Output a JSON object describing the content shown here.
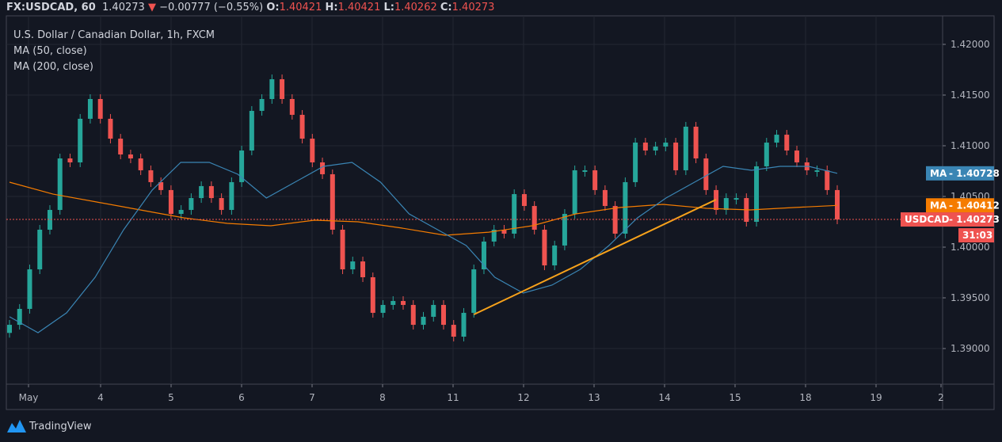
{
  "header": {
    "symbol": "FX:USDCAD, 60",
    "last": "1.40273",
    "change": "−0.00777 (−0.55%)",
    "o_label": "O:",
    "o": "1.40421",
    "h_label": "H:",
    "h": "1.40421",
    "l_label": "L:",
    "l": "1.40262",
    "c_label": "C:",
    "c": "1.40273",
    "direction_icon": "triangle-down-icon"
  },
  "legend": {
    "title": "U.S. Dollar / Canadian Dollar, 1h, FXCM",
    "ma50": "MA (50, close)",
    "ma200": "MA (200, close)"
  },
  "badges": {
    "ma50": {
      "label": "MA",
      "value": "1.40728",
      "color": "#3a85b4"
    },
    "ma200": {
      "label": "MA",
      "value": "1.40412",
      "color": "#f57c00"
    },
    "last": {
      "label": "USDCAD",
      "value": "1.40273",
      "color": "#ef5350"
    },
    "countdown": "31:03"
  },
  "branding": "TradingView",
  "chart_data": {
    "type": "candlestick",
    "title": "U.S. Dollar / Canadian Dollar, 1h, FXCM",
    "ylim": [
      1.38625,
      1.42281
    ],
    "y_ticks": [
      "1.42000",
      "1.41500",
      "1.41000",
      "1.40500",
      "1.40000",
      "1.39500",
      "1.39000"
    ],
    "x_ticks": [
      "May",
      "4",
      "5",
      "6",
      "7",
      "8",
      "11",
      "12",
      "13",
      "14",
      "15",
      "18",
      "19",
      "2"
    ],
    "grid": true,
    "colors": {
      "up": "#26a69a",
      "down": "#ef5350",
      "ma50": "#3a85b4",
      "ma200": "#f57c00",
      "trendline": "#f7a21b",
      "background": "#131722",
      "grid": "#232733"
    },
    "closes": [
      1.39234,
      1.39391,
      1.39781,
      1.40172,
      1.40367,
      1.40875,
      1.40836,
      1.41266,
      1.41461,
      1.41266,
      1.4107,
      1.40914,
      1.40875,
      1.40758,
      1.40641,
      1.40563,
      1.40328,
      1.40367,
      1.40484,
      1.40602,
      1.40484,
      1.40367,
      1.40641,
      1.40953,
      1.41344,
      1.41461,
      1.41656,
      1.41461,
      1.41305,
      1.4107,
      1.40836,
      1.40719,
      1.40172,
      1.39781,
      1.39859,
      1.39703,
      1.39352,
      1.3943,
      1.39469,
      1.3943,
      1.39234,
      1.39313,
      1.3943,
      1.39234,
      1.39117,
      1.39352,
      1.39781,
      1.40055,
      1.40172,
      1.40133,
      1.40523,
      1.40406,
      1.40172,
      1.3982,
      1.40016,
      1.40328,
      1.40758,
      1.40758,
      1.40563,
      1.40406,
      1.40133,
      1.40641,
      1.41031,
      1.40953,
      1.40992,
      1.41031,
      1.40758,
      1.41188,
      1.40875,
      1.40563,
      1.40367,
      1.40484,
      1.40484,
      1.4025,
      1.40797,
      1.41031,
      1.41109,
      1.40953,
      1.40836,
      1.40758,
      1.40758,
      1.40563,
      1.40273
    ],
    "ma50": [
      1.39313,
      1.39156,
      1.39352,
      1.39703,
      1.40172,
      1.40563,
      1.40836,
      1.40836,
      1.40719,
      1.40484,
      1.40641,
      1.40797,
      1.40836,
      1.40641,
      1.40328,
      1.40172,
      1.40016,
      1.39703,
      1.39547,
      1.39625,
      1.39781,
      1.40016,
      1.40289,
      1.40484,
      1.40641,
      1.40797,
      1.40758,
      1.40797,
      1.40797,
      1.40728
    ],
    "ma200": [
      1.40641,
      1.40523,
      1.40445,
      1.40367,
      1.40289,
      1.40234,
      1.40211,
      1.40266,
      1.4025,
      1.40188,
      1.40117,
      1.40148,
      1.40211,
      1.40328,
      1.40391,
      1.40422,
      1.40383,
      1.40367,
      1.40391,
      1.40412
    ],
    "trendline": {
      "start_index": 46,
      "start_price": 1.39336,
      "end_index": 70,
      "end_price": 1.40469
    },
    "last_price": 1.40273
  }
}
